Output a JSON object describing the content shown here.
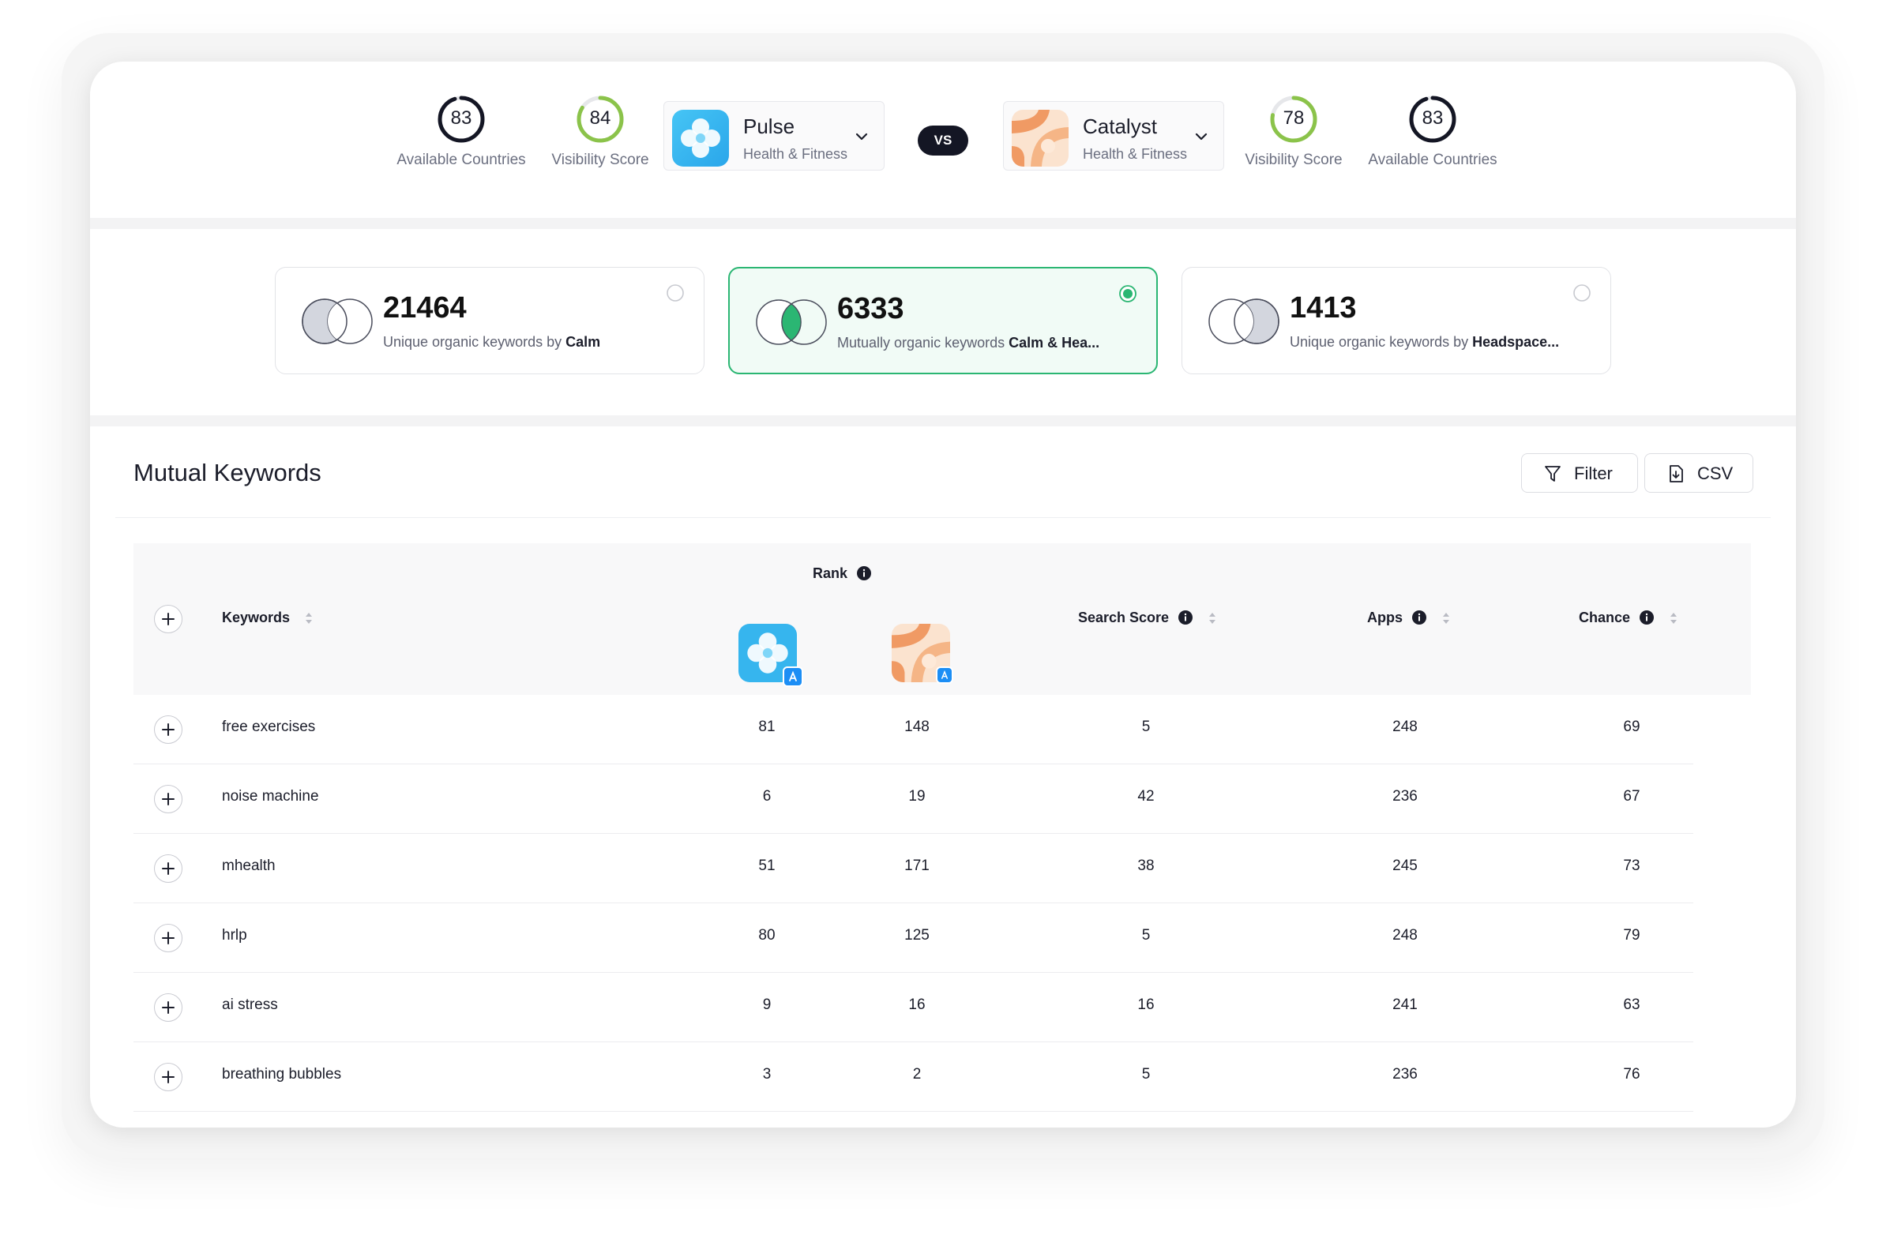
{
  "compare": {
    "left_countries": {
      "value": "83",
      "label": "Available Countries",
      "fraction": 0.95,
      "color": "#141624"
    },
    "left_visibility": {
      "value": "84",
      "label": "Visibility Score",
      "fraction": 0.84,
      "color": "#8bc34a"
    },
    "app_left": {
      "name": "Pulse",
      "category": "Health & Fitness",
      "icon": "pulse-app-icon"
    },
    "vs_label": "VS",
    "app_right": {
      "name": "Catalyst",
      "category": "Health & Fitness",
      "icon": "catalyst-app-icon"
    },
    "right_visibility": {
      "value": "78",
      "label": "Visibility Score",
      "fraction": 0.78,
      "color": "#8bc34a"
    },
    "right_countries": {
      "value": "83",
      "label": "Available Countries",
      "fraction": 0.95,
      "color": "#141624"
    }
  },
  "keyword_sets": [
    {
      "count": "21464",
      "desc_prefix": "Unique organic keywords by ",
      "desc_bold": "Calm",
      "selected": false
    },
    {
      "count": "6333",
      "desc_prefix": "Mutually organic keywords ",
      "desc_bold": "Calm & Hea...",
      "selected": true
    },
    {
      "count": "1413",
      "desc_prefix": "Unique organic keywords by ",
      "desc_bold": "Headspace...",
      "selected": false
    }
  ],
  "section": {
    "title": "Mutual Keywords",
    "filter_label": "Filter",
    "csv_label": "CSV"
  },
  "table": {
    "headers": {
      "keywords": "Keywords",
      "rank": "Rank",
      "search_score": "Search Score",
      "apps": "Apps",
      "chance": "Chance"
    },
    "rows": [
      {
        "keyword": "free exercises",
        "rank_left": "81",
        "rank_right": "148",
        "search_score": "5",
        "apps": "248",
        "chance": "69"
      },
      {
        "keyword": "noise machine",
        "rank_left": "6",
        "rank_right": "19",
        "search_score": "42",
        "apps": "236",
        "chance": "67"
      },
      {
        "keyword": "mhealth",
        "rank_left": "51",
        "rank_right": "171",
        "search_score": "38",
        "apps": "245",
        "chance": "73"
      },
      {
        "keyword": "hrlp",
        "rank_left": "80",
        "rank_right": "125",
        "search_score": "5",
        "apps": "248",
        "chance": "79"
      },
      {
        "keyword": "ai stress",
        "rank_left": "9",
        "rank_right": "16",
        "search_score": "16",
        "apps": "241",
        "chance": "63"
      },
      {
        "keyword": "breathing bubbles",
        "rank_left": "3",
        "rank_right": "2",
        "search_score": "5",
        "apps": "236",
        "chance": "76"
      }
    ]
  },
  "colors": {
    "accent_green": "#2bb673",
    "pulse_blue": "#3fb8f0",
    "catalyst_orange": "#f0a070",
    "dark": "#141624"
  }
}
